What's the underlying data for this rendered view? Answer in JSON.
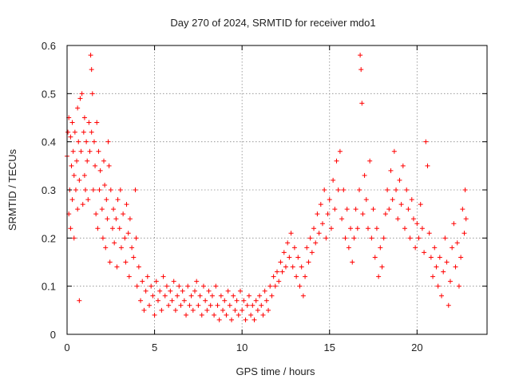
{
  "chart_data": {
    "type": "scatter",
    "title": "Day 270 of 2024, SRMTID for receiver mdo1",
    "xlabel": "GPS time / hours",
    "ylabel": "SRMTID / TECUs",
    "xlim": [
      0,
      24
    ],
    "ylim": [
      0,
      0.6
    ],
    "x_ticks": [
      0,
      5,
      10,
      15,
      20
    ],
    "x_tick_labels": [
      "0",
      "5",
      "10",
      "15",
      "20"
    ],
    "y_ticks": [
      0,
      0.1,
      0.2,
      0.3,
      0.4,
      0.5,
      0.6
    ],
    "y_tick_labels": [
      "0",
      "0.1",
      "0.2",
      "0.3",
      "0.4",
      "0.5",
      "0.6"
    ],
    "grid": true,
    "marker": "plus",
    "marker_color": "#ff0000",
    "series": [
      {
        "name": "SRMTID",
        "points": [
          [
            0.0,
            0.37
          ],
          [
            0.05,
            0.42
          ],
          [
            0.1,
            0.25
          ],
          [
            0.1,
            0.45
          ],
          [
            0.15,
            0.3
          ],
          [
            0.2,
            0.41
          ],
          [
            0.2,
            0.22
          ],
          [
            0.25,
            0.35
          ],
          [
            0.3,
            0.44
          ],
          [
            0.3,
            0.28
          ],
          [
            0.35,
            0.38
          ],
          [
            0.4,
            0.2
          ],
          [
            0.4,
            0.33
          ],
          [
            0.45,
            0.42
          ],
          [
            0.5,
            0.3
          ],
          [
            0.55,
            0.36
          ],
          [
            0.6,
            0.26
          ],
          [
            0.6,
            0.47
          ],
          [
            0.65,
            0.4
          ],
          [
            0.7,
            0.32
          ],
          [
            0.7,
            0.07
          ],
          [
            0.75,
            0.49
          ],
          [
            0.8,
            0.38
          ],
          [
            0.85,
            0.5
          ],
          [
            0.9,
            0.27
          ],
          [
            0.95,
            0.42
          ],
          [
            1.0,
            0.33
          ],
          [
            1.0,
            0.45
          ],
          [
            1.05,
            0.3
          ],
          [
            1.1,
            0.4
          ],
          [
            1.15,
            0.36
          ],
          [
            1.2,
            0.28
          ],
          [
            1.25,
            0.44
          ],
          [
            1.3,
            0.38
          ],
          [
            1.35,
            0.58
          ],
          [
            1.4,
            0.55
          ],
          [
            1.4,
            0.42
          ],
          [
            1.45,
            0.5
          ],
          [
            1.5,
            0.3
          ],
          [
            1.55,
            0.4
          ],
          [
            1.6,
            0.35
          ],
          [
            1.65,
            0.25
          ],
          [
            1.7,
            0.44
          ],
          [
            1.75,
            0.22
          ],
          [
            1.8,
            0.38
          ],
          [
            1.85,
            0.3
          ],
          [
            1.9,
            0.34
          ],
          [
            2.0,
            0.26
          ],
          [
            2.05,
            0.2
          ],
          [
            2.1,
            0.36
          ],
          [
            2.15,
            0.31
          ],
          [
            2.2,
            0.18
          ],
          [
            2.25,
            0.28
          ],
          [
            2.3,
            0.24
          ],
          [
            2.35,
            0.4
          ],
          [
            2.4,
            0.35
          ],
          [
            2.45,
            0.15
          ],
          [
            2.5,
            0.3
          ],
          [
            2.6,
            0.22
          ],
          [
            2.65,
            0.26
          ],
          [
            2.7,
            0.19
          ],
          [
            2.8,
            0.24
          ],
          [
            2.85,
            0.14
          ],
          [
            2.9,
            0.28
          ],
          [
            3.0,
            0.22
          ],
          [
            3.05,
            0.3
          ],
          [
            3.1,
            0.18
          ],
          [
            3.2,
            0.25
          ],
          [
            3.3,
            0.2
          ],
          [
            3.35,
            0.15
          ],
          [
            3.4,
            0.27
          ],
          [
            3.5,
            0.21
          ],
          [
            3.55,
            0.12
          ],
          [
            3.6,
            0.24
          ],
          [
            3.7,
            0.18
          ],
          [
            3.8,
            0.16
          ],
          [
            3.9,
            0.3
          ],
          [
            3.95,
            0.2
          ],
          [
            4.0,
            0.1
          ],
          [
            4.1,
            0.14
          ],
          [
            4.2,
            0.07
          ],
          [
            4.3,
            0.11
          ],
          [
            4.4,
            0.05
          ],
          [
            4.5,
            0.09
          ],
          [
            4.6,
            0.12
          ],
          [
            4.7,
            0.06
          ],
          [
            4.8,
            0.1
          ],
          [
            4.9,
            0.08
          ],
          [
            5.0,
            0.04
          ],
          [
            5.1,
            0.11
          ],
          [
            5.2,
            0.07
          ],
          [
            5.3,
            0.09
          ],
          [
            5.4,
            0.05
          ],
          [
            5.5,
            0.12
          ],
          [
            5.6,
            0.08
          ],
          [
            5.7,
            0.1
          ],
          [
            5.8,
            0.06
          ],
          [
            5.9,
            0.09
          ],
          [
            6.0,
            0.07
          ],
          [
            6.1,
            0.11
          ],
          [
            6.2,
            0.05
          ],
          [
            6.3,
            0.08
          ],
          [
            6.4,
            0.1
          ],
          [
            6.5,
            0.06
          ],
          [
            6.6,
            0.09
          ],
          [
            6.7,
            0.07
          ],
          [
            6.8,
            0.04
          ],
          [
            6.9,
            0.1
          ],
          [
            7.0,
            0.06
          ],
          [
            7.1,
            0.08
          ],
          [
            7.2,
            0.05
          ],
          [
            7.3,
            0.09
          ],
          [
            7.4,
            0.11
          ],
          [
            7.5,
            0.06
          ],
          [
            7.6,
            0.08
          ],
          [
            7.7,
            0.04
          ],
          [
            7.8,
            0.1
          ],
          [
            7.9,
            0.07
          ],
          [
            8.0,
            0.05
          ],
          [
            8.1,
            0.09
          ],
          [
            8.2,
            0.06
          ],
          [
            8.3,
            0.08
          ],
          [
            8.4,
            0.04
          ],
          [
            8.5,
            0.1
          ],
          [
            8.6,
            0.06
          ],
          [
            8.7,
            0.03
          ],
          [
            8.8,
            0.08
          ],
          [
            8.9,
            0.05
          ],
          [
            9.0,
            0.07
          ],
          [
            9.1,
            0.04
          ],
          [
            9.2,
            0.09
          ],
          [
            9.3,
            0.06
          ],
          [
            9.4,
            0.03
          ],
          [
            9.5,
            0.08
          ],
          [
            9.6,
            0.05
          ],
          [
            9.7,
            0.07
          ],
          [
            9.8,
            0.04
          ],
          [
            9.9,
            0.09
          ],
          [
            10.0,
            0.05
          ],
          [
            10.1,
            0.07
          ],
          [
            10.2,
            0.03
          ],
          [
            10.3,
            0.06
          ],
          [
            10.4,
            0.08
          ],
          [
            10.5,
            0.04
          ],
          [
            10.6,
            0.06
          ],
          [
            10.7,
            0.03
          ],
          [
            10.8,
            0.07
          ],
          [
            10.9,
            0.05
          ],
          [
            11.0,
            0.08
          ],
          [
            11.1,
            0.06
          ],
          [
            11.2,
            0.04
          ],
          [
            11.3,
            0.09
          ],
          [
            11.4,
            0.07
          ],
          [
            11.5,
            0.05
          ],
          [
            11.6,
            0.1
          ],
          [
            11.7,
            0.08
          ],
          [
            11.8,
            0.12
          ],
          [
            11.9,
            0.1
          ],
          [
            12.0,
            0.13
          ],
          [
            12.1,
            0.11
          ],
          [
            12.2,
            0.15
          ],
          [
            12.3,
            0.13
          ],
          [
            12.4,
            0.17
          ],
          [
            12.5,
            0.14
          ],
          [
            12.6,
            0.19
          ],
          [
            12.7,
            0.16
          ],
          [
            12.8,
            0.21
          ],
          [
            12.9,
            0.14
          ],
          [
            13.0,
            0.18
          ],
          [
            13.1,
            0.12
          ],
          [
            13.2,
            0.16
          ],
          [
            13.3,
            0.1
          ],
          [
            13.4,
            0.14
          ],
          [
            13.5,
            0.08
          ],
          [
            13.6,
            0.12
          ],
          [
            13.7,
            0.18
          ],
          [
            13.8,
            0.15
          ],
          [
            13.9,
            0.2
          ],
          [
            14.0,
            0.17
          ],
          [
            14.1,
            0.22
          ],
          [
            14.2,
            0.19
          ],
          [
            14.3,
            0.25
          ],
          [
            14.4,
            0.21
          ],
          [
            14.5,
            0.27
          ],
          [
            14.6,
            0.23
          ],
          [
            14.7,
            0.3
          ],
          [
            14.8,
            0.2
          ],
          [
            14.9,
            0.25
          ],
          [
            15.0,
            0.28
          ],
          [
            15.1,
            0.22
          ],
          [
            15.2,
            0.32
          ],
          [
            15.3,
            0.26
          ],
          [
            15.4,
            0.36
          ],
          [
            15.5,
            0.3
          ],
          [
            15.6,
            0.38
          ],
          [
            15.7,
            0.24
          ],
          [
            15.8,
            0.3
          ],
          [
            15.9,
            0.2
          ],
          [
            16.0,
            0.26
          ],
          [
            16.1,
            0.18
          ],
          [
            16.2,
            0.22
          ],
          [
            16.3,
            0.15
          ],
          [
            16.4,
            0.2
          ],
          [
            16.5,
            0.26
          ],
          [
            16.6,
            0.22
          ],
          [
            16.7,
            0.3
          ],
          [
            16.75,
            0.58
          ],
          [
            16.8,
            0.55
          ],
          [
            16.85,
            0.48
          ],
          [
            16.9,
            0.25
          ],
          [
            17.0,
            0.33
          ],
          [
            17.1,
            0.28
          ],
          [
            17.2,
            0.22
          ],
          [
            17.3,
            0.36
          ],
          [
            17.4,
            0.2
          ],
          [
            17.5,
            0.26
          ],
          [
            17.6,
            0.16
          ],
          [
            17.7,
            0.22
          ],
          [
            17.8,
            0.12
          ],
          [
            17.9,
            0.18
          ],
          [
            18.0,
            0.14
          ],
          [
            18.1,
            0.2
          ],
          [
            18.2,
            0.25
          ],
          [
            18.3,
            0.3
          ],
          [
            18.4,
            0.26
          ],
          [
            18.5,
            0.34
          ],
          [
            18.6,
            0.28
          ],
          [
            18.7,
            0.38
          ],
          [
            18.8,
            0.3
          ],
          [
            18.9,
            0.24
          ],
          [
            19.0,
            0.32
          ],
          [
            19.1,
            0.27
          ],
          [
            19.2,
            0.35
          ],
          [
            19.3,
            0.22
          ],
          [
            19.4,
            0.3
          ],
          [
            19.5,
            0.26
          ],
          [
            19.6,
            0.2
          ],
          [
            19.7,
            0.28
          ],
          [
            19.8,
            0.24
          ],
          [
            19.9,
            0.18
          ],
          [
            20.0,
            0.23
          ],
          [
            20.1,
            0.2
          ],
          [
            20.2,
            0.27
          ],
          [
            20.3,
            0.22
          ],
          [
            20.4,
            0.17
          ],
          [
            20.5,
            0.4
          ],
          [
            20.6,
            0.35
          ],
          [
            20.7,
            0.21
          ],
          [
            20.8,
            0.16
          ],
          [
            20.9,
            0.12
          ],
          [
            21.0,
            0.18
          ],
          [
            21.1,
            0.14
          ],
          [
            21.2,
            0.1
          ],
          [
            21.3,
            0.16
          ],
          [
            21.4,
            0.08
          ],
          [
            21.5,
            0.13
          ],
          [
            21.6,
            0.2
          ],
          [
            21.7,
            0.15
          ],
          [
            21.8,
            0.06
          ],
          [
            21.9,
            0.11
          ],
          [
            22.0,
            0.18
          ],
          [
            22.1,
            0.23
          ],
          [
            22.2,
            0.14
          ],
          [
            22.3,
            0.19
          ],
          [
            22.4,
            0.1
          ],
          [
            22.5,
            0.16
          ],
          [
            22.6,
            0.26
          ],
          [
            22.7,
            0.21
          ],
          [
            22.75,
            0.3
          ],
          [
            22.8,
            0.24
          ]
        ]
      }
    ]
  }
}
